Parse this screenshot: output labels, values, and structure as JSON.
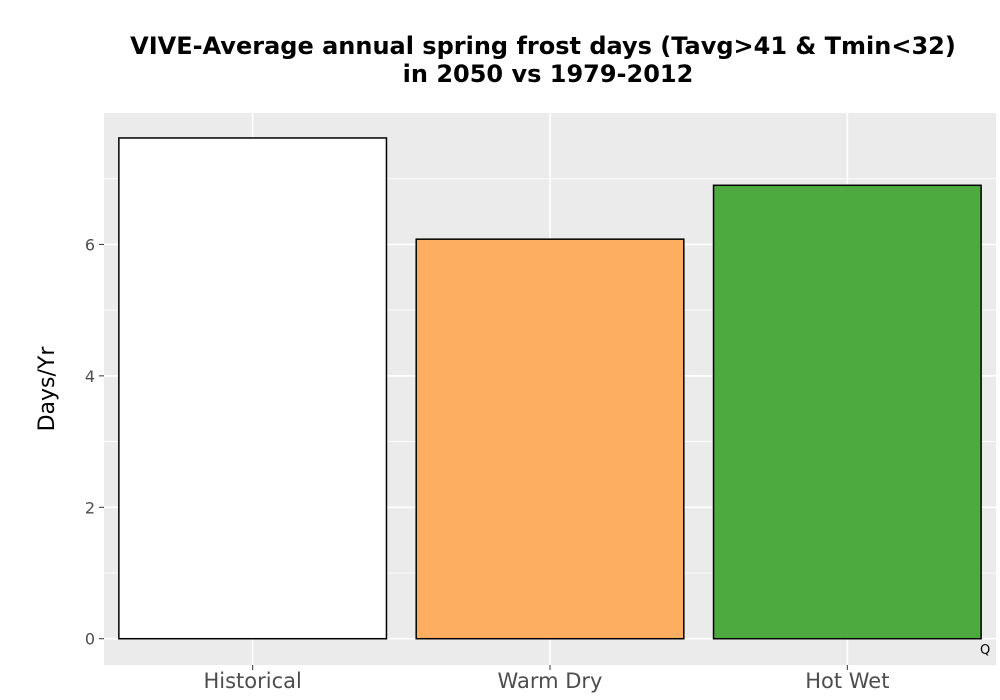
{
  "chart_data": {
    "type": "bar",
    "title_lines": [
      "VIVE-Average annual spring frost days (Tavg>41 & Tmin<32)",
      "in 2050 vs 1979-2012"
    ],
    "xlabel": "",
    "ylabel": "Days/Yr",
    "categories": [
      "Historical",
      "Warm Dry",
      "Hot Wet"
    ],
    "values": [
      7.62,
      6.08,
      6.9
    ],
    "colors": [
      "#ffffff",
      "#fdae61",
      "#4daa3f"
    ],
    "ylim": [
      -0.4,
      8.0
    ],
    "yticks": [
      0,
      2,
      4,
      6
    ],
    "grid": true,
    "panel_background": "#ebebeb",
    "corner_note": "Q"
  }
}
